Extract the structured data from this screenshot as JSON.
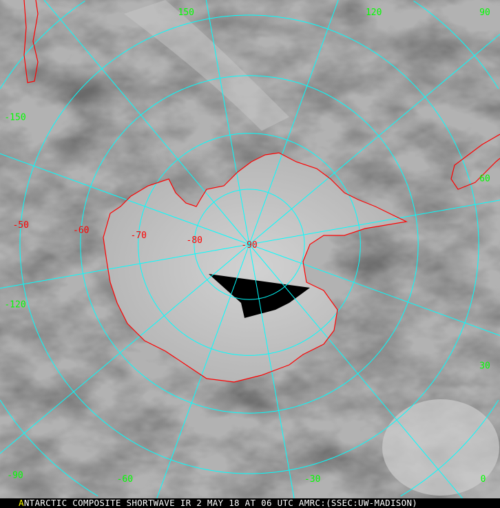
{
  "caption": {
    "first_letter": "A",
    "text": "NTARCTIC COMPOSITE SHORTWAVE IR 2 MAY 18 AT 06 UTC AMRC:(SSEC:UW-MADISON)"
  },
  "projection": "polar stereographic, south pole centered",
  "meridian_labels": [
    {
      "lon": 150,
      "text": "150"
    },
    {
      "lon": 120,
      "text": "120"
    },
    {
      "lon": 90,
      "text": "90"
    },
    {
      "lon": 60,
      "text": "60"
    },
    {
      "lon": 30,
      "text": "30"
    },
    {
      "lon": 0,
      "text": "0"
    },
    {
      "lon": -30,
      "text": "-30"
    },
    {
      "lon": -60,
      "text": "-60"
    },
    {
      "lon": -90,
      "text": "-90"
    },
    {
      "lon": -120,
      "text": "-120"
    },
    {
      "lon": -150,
      "text": "-150"
    }
  ],
  "parallel_labels": [
    {
      "lat": -50,
      "text": "-50"
    },
    {
      "lat": -60,
      "text": "-60"
    },
    {
      "lat": -70,
      "text": "-70"
    },
    {
      "lat": -80,
      "text": "-80"
    },
    {
      "lat": -90,
      "text": "-90"
    }
  ],
  "colors": {
    "grid": "#00ffff",
    "coastline": "#ff0000",
    "meridian_label": "#00ff00",
    "parallel_label": "#ff0000",
    "caption_text": "#ffffff",
    "caption_first_letter": "#ffff00",
    "no_data": "#000000"
  }
}
